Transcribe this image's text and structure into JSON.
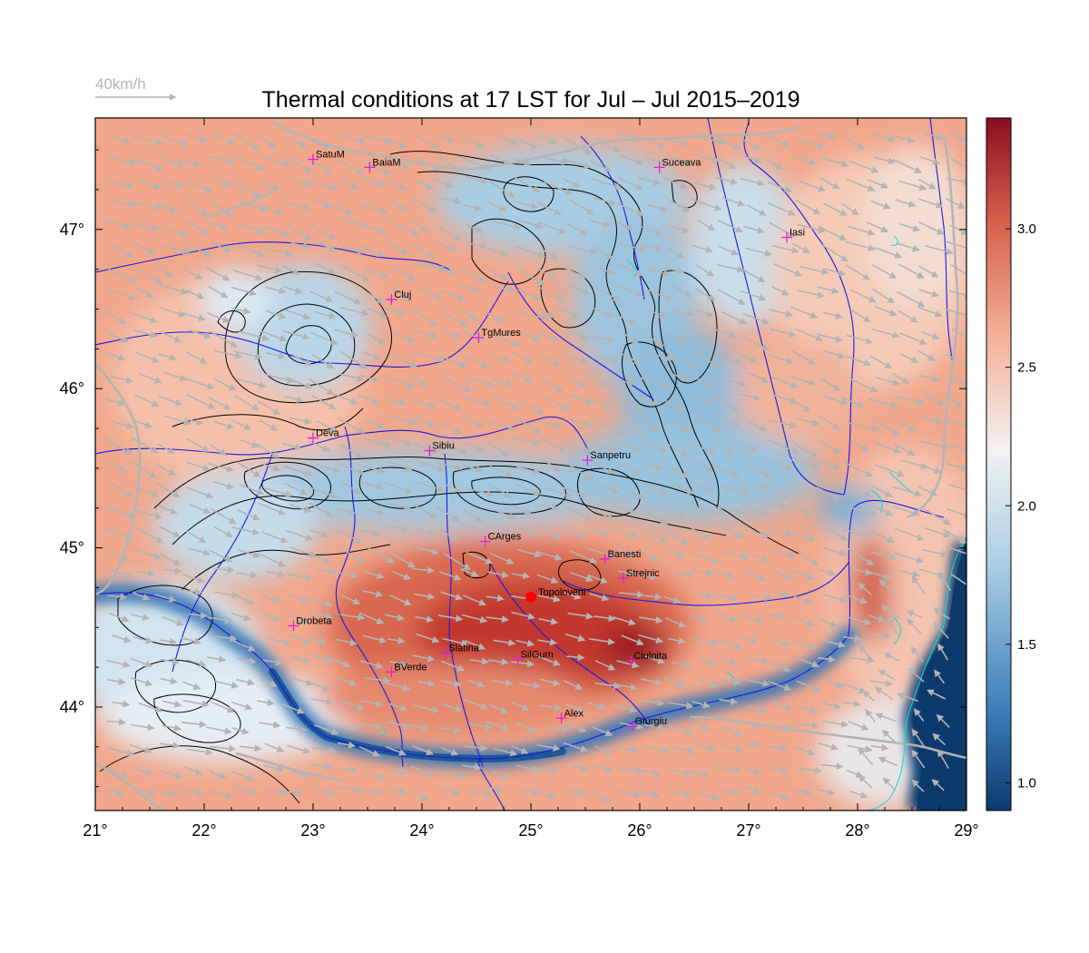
{
  "title": "Thermal conditions at 17 LST for Jul – Jul  2015–2019",
  "wind_scale": {
    "label": "40km/h"
  },
  "map": {
    "lon_range": [
      21,
      29
    ],
    "lat_range": [
      43.35,
      47.7
    ],
    "x_ticks": [
      {
        "value": 21,
        "label": "21°"
      },
      {
        "value": 22,
        "label": "22°"
      },
      {
        "value": 23,
        "label": "23°"
      },
      {
        "value": 24,
        "label": "24°"
      },
      {
        "value": 25,
        "label": "25°"
      },
      {
        "value": 26,
        "label": "26°"
      },
      {
        "value": 27,
        "label": "27°"
      },
      {
        "value": 28,
        "label": "28°"
      },
      {
        "value": 29,
        "label": "29°"
      }
    ],
    "y_ticks": [
      {
        "value": 44,
        "label": "44°"
      },
      {
        "value": 45,
        "label": "45°"
      },
      {
        "value": 46,
        "label": "46°"
      },
      {
        "value": 47,
        "label": "47°"
      }
    ],
    "cities": [
      {
        "name": "SatuM",
        "lon": 23.0,
        "lat": 47.44
      },
      {
        "name": "BaiaM",
        "lon": 23.52,
        "lat": 47.39
      },
      {
        "name": "Suceava",
        "lon": 26.18,
        "lat": 47.39
      },
      {
        "name": "Iasi",
        "lon": 27.35,
        "lat": 46.95
      },
      {
        "name": "Cluj",
        "lon": 23.72,
        "lat": 46.56
      },
      {
        "name": "TgMures",
        "lon": 24.52,
        "lat": 46.32
      },
      {
        "name": "Deva",
        "lon": 23.0,
        "lat": 45.69
      },
      {
        "name": "Sibiu",
        "lon": 24.07,
        "lat": 45.61
      },
      {
        "name": "Sanpetru",
        "lon": 25.52,
        "lat": 45.55
      },
      {
        "name": "CArges",
        "lon": 24.58,
        "lat": 45.04
      },
      {
        "name": "Banesti",
        "lon": 25.68,
        "lat": 44.93
      },
      {
        "name": "Strejnic",
        "lon": 25.85,
        "lat": 44.81
      },
      {
        "name": "Drobeta",
        "lon": 22.82,
        "lat": 44.51
      },
      {
        "name": "Slatina",
        "lon": 24.22,
        "lat": 44.34
      },
      {
        "name": "SilGum",
        "lon": 24.88,
        "lat": 44.3
      },
      {
        "name": "Ciulnita",
        "lon": 25.92,
        "lat": 44.29
      },
      {
        "name": "BVerde",
        "lon": 23.72,
        "lat": 44.22
      },
      {
        "name": "Alex",
        "lon": 25.28,
        "lat": 43.93
      },
      {
        "name": "Giurgiu",
        "lon": 25.93,
        "lat": 43.88
      }
    ],
    "highlight": {
      "name": "Topoloveni",
      "lon": 25.0,
      "lat": 44.69,
      "color": "#ff0000"
    },
    "city_marker_color": "#e020d0"
  },
  "colorbar": {
    "range": [
      0.9,
      3.4
    ],
    "ticks": [
      {
        "value": 1.0,
        "label": "1.0"
      },
      {
        "value": 1.5,
        "label": "1.5"
      },
      {
        "value": 2.0,
        "label": "2.0"
      },
      {
        "value": 2.5,
        "label": "2.5"
      },
      {
        "value": 3.0,
        "label": "3.0"
      }
    ],
    "stops": [
      "#0b3a6e",
      "#3f7fbb",
      "#a9cde3",
      "#f2f2f2",
      "#f4b39a",
      "#d6604d",
      "#8a0d1f"
    ]
  },
  "colors": {
    "contour": "#000000",
    "river": "#1a1ae6",
    "border": "#b4b4b4",
    "wind": "#b4b4b4",
    "coast": "#00e0e0"
  }
}
